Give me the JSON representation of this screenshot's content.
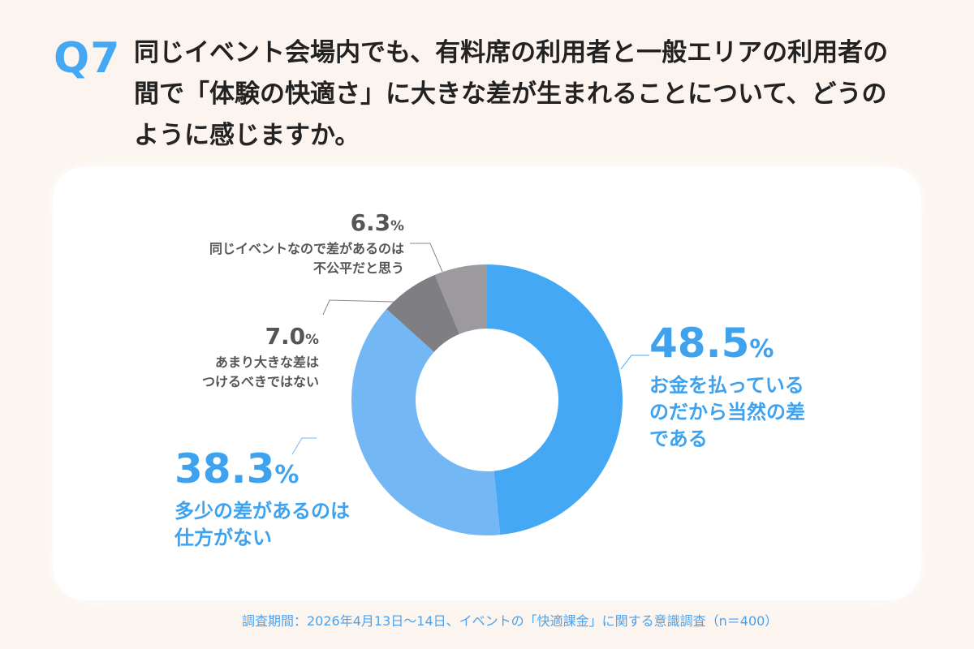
{
  "header": {
    "q_number": "Q7",
    "question": "同じイベント会場内でも、有料席の利用者と一般エリアの利用者の間で「体験の快適さ」に大きな差が生まれることについて、どうのように感じますか。"
  },
  "chart_data": {
    "type": "pie",
    "donut": true,
    "start": "top",
    "direction": "clockwise",
    "slices": [
      {
        "label": "お金を払っているのだから当然の差である",
        "value": 48.5,
        "pct_text": "48.5",
        "color": "#45a8f5"
      },
      {
        "label": "多少の差があるのは仕方がない",
        "value": 38.3,
        "pct_text": "38.3",
        "color": "#74b7f5"
      },
      {
        "label": "あまり大きな差はつけるべきではない",
        "value": 7.0,
        "pct_text": "7.0",
        "color": "#7f7e82"
      },
      {
        "label": "同じイベントなので差があるのは不公平だと思う",
        "value": 6.3,
        "pct_text": "6.3",
        "color": "#9c9a9e"
      }
    ],
    "unit": "%"
  },
  "labels": {
    "s0": {
      "line1": "お金を払っている",
      "line2": "のだから当然の差",
      "line3": "である"
    },
    "s1": {
      "line1": "多少の差があるのは",
      "line2": "仕方がない"
    },
    "s2": {
      "line1": "あまり大きな差は",
      "line2": "つけるべきではない"
    },
    "s3": {
      "line1": "同じイベントなので差があるのは",
      "line2": "不公平だと思う"
    }
  },
  "footer": "調査期間：2026年4月13日～14日、イベントの「快適課金」に関する意識調査（n＝400）"
}
